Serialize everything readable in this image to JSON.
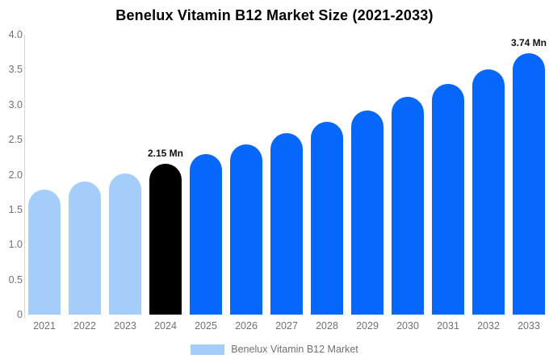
{
  "title": "Benelux Vitamin B12 Market Size (2021-2033)",
  "chart_data": {
    "type": "bar",
    "categories": [
      "2021",
      "2022",
      "2023",
      "2024",
      "2025",
      "2026",
      "2027",
      "2028",
      "2029",
      "2030",
      "2031",
      "2032",
      "2033"
    ],
    "values": [
      1.79,
      1.9,
      2.02,
      2.15,
      2.29,
      2.43,
      2.59,
      2.75,
      2.92,
      3.11,
      3.3,
      3.51,
      3.74
    ],
    "bar_colors": [
      "#a4cdfa",
      "#a4cdfa",
      "#a4cdfa",
      "#000000",
      "#0667fc",
      "#0667fc",
      "#0667fc",
      "#0667fc",
      "#0667fc",
      "#0667fc",
      "#0667fc",
      "#0667fc",
      "#0667fc"
    ],
    "annotations": [
      {
        "index": 3,
        "label": "2.15 Mn"
      },
      {
        "index": 12,
        "label": "3.74 Mn"
      }
    ],
    "title": "Benelux Vitamin B12 Market Size (2021-2033)",
    "xlabel": "",
    "ylabel": "",
    "ylim": [
      0,
      4.0
    ],
    "y_ticks": [
      "4.0",
      "3.5",
      "3.0",
      "2.5",
      "2.0",
      "1.5",
      "1.0",
      "0.5",
      "0"
    ],
    "grid": false,
    "legend_position": "bottom"
  },
  "legend": {
    "label": "Benelux Vitamin B12 Market",
    "swatch_color": "#a4cdfa"
  },
  "colors": {
    "historical_bar": "#a4cdfa",
    "current_year_bar": "#000000",
    "forecast_bar": "#0667fc",
    "axis_line": "#d8d8d8",
    "tick_text": "#707070",
    "title_text": "#000000"
  }
}
